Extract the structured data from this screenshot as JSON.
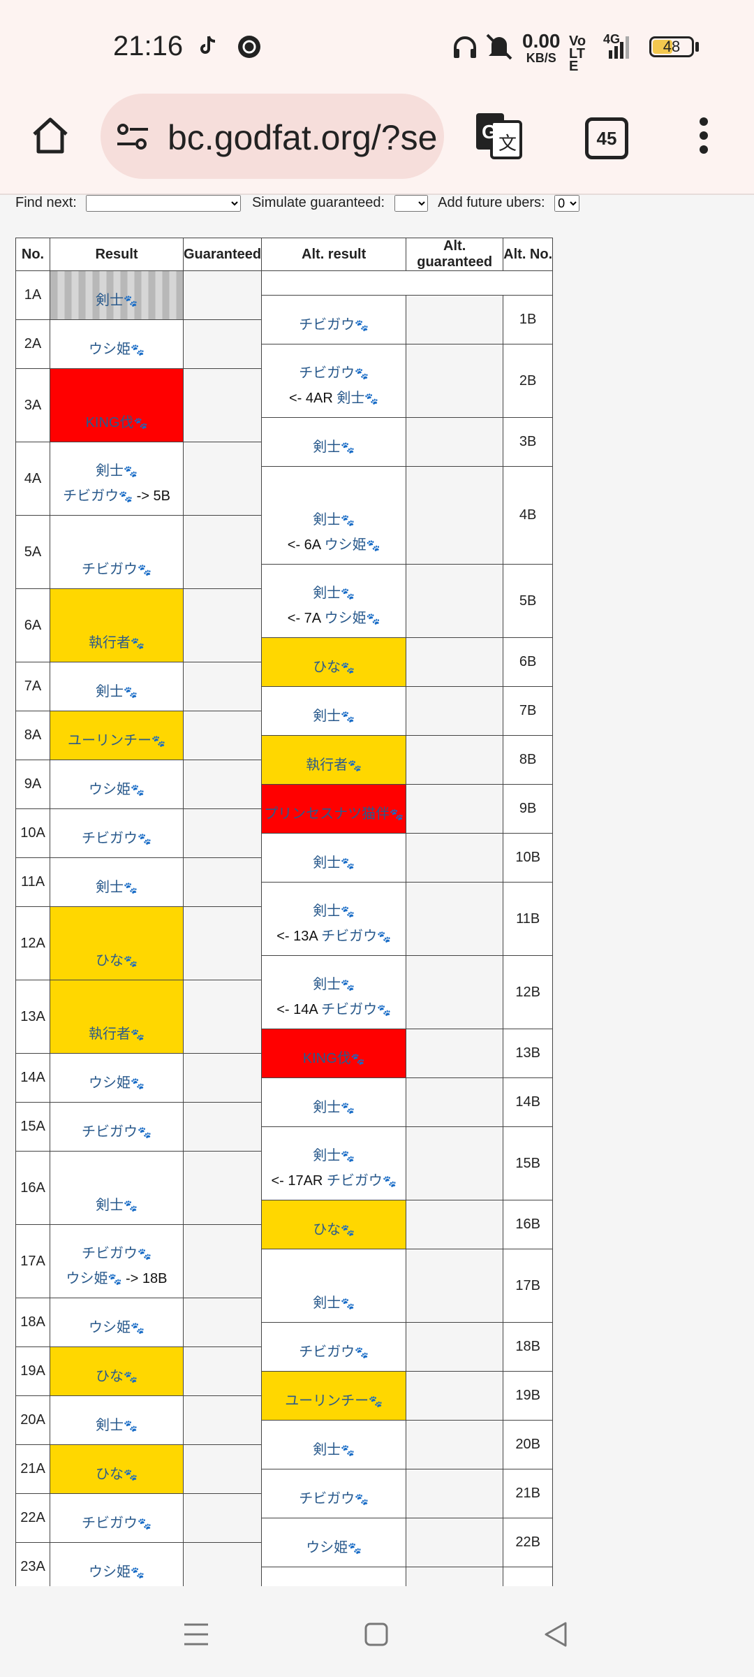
{
  "status": {
    "time": "21:16",
    "net_speed": "0.00",
    "net_unit": "KB/S",
    "volte": "Vo LTE",
    "signal": "4G",
    "battery": "48",
    "battery_level": 0.48
  },
  "browser": {
    "url": "bc.godfat.org/?se",
    "tab_count": "45"
  },
  "controls": {
    "find_next": "Find next:",
    "simulate": "Simulate guaranteed:",
    "future": "Add future ubers:",
    "future_value": "0"
  },
  "headers": [
    "No.",
    "Result",
    "Guaranteed",
    "Alt. result",
    "Alt. guaranteed",
    "Alt. No."
  ],
  "colors": {
    "yellow": "#ffd700",
    "red": "#ff0000"
  }
}
